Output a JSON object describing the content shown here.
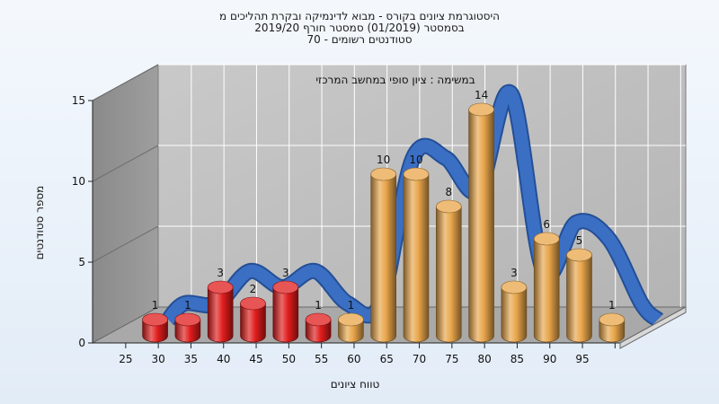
{
  "chart_data": {
    "type": "bar",
    "title_lines": [
      "היסטוגרמת ציונים בקורס - מבוא לדינמיקה ובקרת תהליכים מ",
      "בסמסטר  (01/2019)  סמסטר חורף  2019/20",
      "סטודנטים רשומים - 70"
    ],
    "subtitle": "במשימה : ציון סופי במחשב המרכזי",
    "xlabel": "טווח ציונים",
    "ylabel": "מספר סטודנטים",
    "ylim": [
      0,
      15
    ],
    "yticks": [
      0,
      5,
      10,
      15
    ],
    "categories": [
      "25",
      "30",
      "35",
      "40",
      "45",
      "50",
      "55",
      "60",
      "65",
      "70",
      "75",
      "80",
      "85",
      "90",
      "95"
    ],
    "values": [
      1,
      1,
      3,
      2,
      3,
      1,
      1,
      10,
      10,
      8,
      14,
      3,
      6,
      5,
      1
    ],
    "bar_colors": [
      "#e01c1c",
      "#e01c1c",
      "#e01c1c",
      "#e01c1c",
      "#e01c1c",
      "#e01c1c",
      "#e8a54a",
      "#e8a54a",
      "#e8a54a",
      "#e8a54a",
      "#e8a54a",
      "#e8a54a",
      "#e8a54a",
      "#e8a54a",
      "#e8a54a"
    ],
    "curve_color": "#3a6fc4",
    "grid": true
  }
}
